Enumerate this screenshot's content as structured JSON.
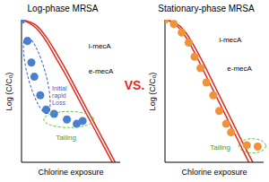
{
  "chart_data": [
    {
      "type": "scatter",
      "title": "Log-phase MRSA",
      "x_label": "Chlorine exposure",
      "y_label": "Log (C/C₀)",
      "xlim": [
        0,
        10
      ],
      "ylim": [
        -10,
        0
      ],
      "tick_labels": false,
      "series": [
        {
          "type": "scatter",
          "marker": "circle",
          "color": "#4a7fd0",
          "x": [
            0,
            0.6,
            1.0,
            1.3,
            1.9,
            2.5,
            3.3,
            4.6,
            5.6,
            6.2
          ],
          "values": [
            0,
            -1.5,
            -3.0,
            -4.0,
            -5.3,
            -6.3,
            -6.6,
            -7.0,
            -7.3,
            -7.1
          ]
        },
        {
          "name": "i-mecA",
          "type": "line",
          "color": "#e5281e",
          "x": [
            0,
            1.5,
            2.5,
            3.5,
            4.5,
            5.5,
            6.5,
            7.5,
            8.5,
            9.5
          ],
          "values": [
            0,
            -0.4,
            -1.2,
            -2.3,
            -3.5,
            -4.8,
            -6.1,
            -7.4,
            -8.7,
            -10
          ]
        },
        {
          "name": "e-mecA",
          "type": "line",
          "color": "#e5281e",
          "x": [
            0,
            1.5,
            2.5,
            3.5,
            4.5,
            5.5,
            6.5,
            7.5,
            8.5,
            9.2
          ],
          "values": [
            0,
            -0.6,
            -1.5,
            -2.7,
            -3.9,
            -5.2,
            -6.5,
            -7.8,
            -9.1,
            -10
          ]
        }
      ],
      "annotations": [
        "Initial rapid Loss",
        "Tailing"
      ]
    },
    {
      "type": "scatter",
      "title": "Stationary-phase MRSA",
      "x_label": "Chlorine exposure",
      "y_label": "Log (C/C₀)",
      "xlim": [
        0,
        10
      ],
      "ylim": [
        -10,
        0
      ],
      "tick_labels": false,
      "series": [
        {
          "type": "scatter",
          "marker": "circle",
          "color": "#f0923a",
          "x": [
            0,
            0.9,
            1.7,
            2.4,
            3.0,
            3.6,
            4.2,
            4.9,
            5.5,
            6.2,
            6.7,
            8.3,
            9.4
          ],
          "values": [
            0,
            -0.3,
            -0.9,
            -1.6,
            -2.6,
            -3.4,
            -4.4,
            -5.3,
            -6.4,
            -7.3,
            -7.9,
            -8.8,
            -8.9
          ]
        },
        {
          "name": "i-mecA",
          "type": "line",
          "color": "#e5281e",
          "x": [
            0,
            1,
            2,
            3,
            4,
            5,
            6,
            7,
            8,
            8.9
          ],
          "values": [
            0,
            -0.2,
            -0.8,
            -1.9,
            -3.2,
            -4.6,
            -6.0,
            -7.4,
            -8.8,
            -10
          ]
        },
        {
          "name": "e-mecA",
          "type": "line",
          "color": "#e5281e",
          "x": [
            0,
            1,
            2,
            3,
            4,
            5,
            6,
            7,
            8,
            8.5
          ],
          "values": [
            0,
            -0.3,
            -1.1,
            -2.3,
            -3.7,
            -5.1,
            -6.5,
            -7.9,
            -9.3,
            -10
          ]
        }
      ],
      "annotations": [
        "Tailing"
      ]
    }
  ],
  "annotations": [
    "VS."
  ]
}
